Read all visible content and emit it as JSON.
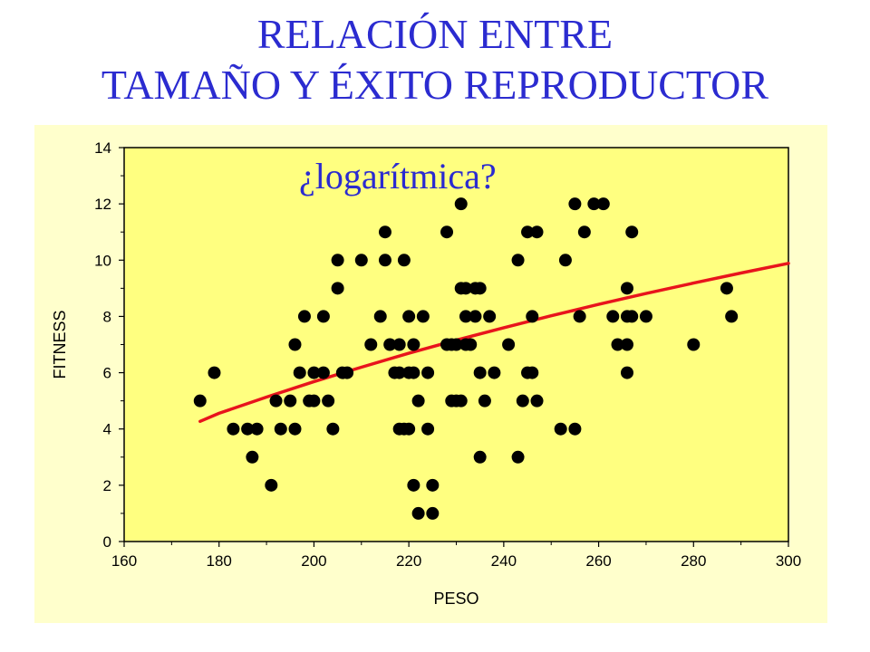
{
  "title": {
    "line1": "RELACIÓN ENTRE",
    "line2": "TAMAÑO Y ÉXITO REPRODUCTOR"
  },
  "colors": {
    "title": "#2b2bd0",
    "panel_background": "#ffffcc",
    "plot_background": "#ffff80",
    "points": "#000000",
    "trend_line": "#e8141c"
  },
  "chart_data": {
    "type": "scatter",
    "xlabel": "PESO",
    "ylabel": "FITNESS",
    "annotation": "¿logarítmica?",
    "xlim": [
      160,
      300
    ],
    "ylim": [
      0,
      14
    ],
    "x_ticks": [
      160,
      180,
      200,
      220,
      240,
      260,
      280,
      300
    ],
    "y_ticks": [
      0,
      2,
      4,
      6,
      8,
      10,
      12,
      14
    ],
    "grid": false,
    "series": [
      {
        "points": [
          [
            176,
            5
          ],
          [
            179,
            6
          ],
          [
            183,
            4
          ],
          [
            186,
            4
          ],
          [
            187,
            3
          ],
          [
            188,
            4
          ],
          [
            191,
            2
          ],
          [
            192,
            5
          ],
          [
            193,
            4
          ],
          [
            195,
            5
          ],
          [
            196,
            4
          ],
          [
            196,
            7
          ],
          [
            197,
            6
          ],
          [
            198,
            8
          ],
          [
            199,
            5
          ],
          [
            200,
            6
          ],
          [
            200,
            5
          ],
          [
            202,
            6
          ],
          [
            202,
            8
          ],
          [
            203,
            5
          ],
          [
            204,
            4
          ],
          [
            205,
            9
          ],
          [
            205,
            10
          ],
          [
            206,
            6
          ],
          [
            207,
            6
          ],
          [
            210,
            10
          ],
          [
            212,
            7
          ],
          [
            214,
            8
          ],
          [
            215,
            11
          ],
          [
            215,
            10
          ],
          [
            216,
            7
          ],
          [
            217,
            6
          ],
          [
            218,
            4
          ],
          [
            218,
            6
          ],
          [
            218,
            7
          ],
          [
            219,
            10
          ],
          [
            219,
            4
          ],
          [
            220,
            6
          ],
          [
            220,
            8
          ],
          [
            220,
            4
          ],
          [
            221,
            6
          ],
          [
            221,
            7
          ],
          [
            221,
            2
          ],
          [
            222,
            1
          ],
          [
            222,
            5
          ],
          [
            223,
            8
          ],
          [
            224,
            6
          ],
          [
            224,
            4
          ],
          [
            225,
            1
          ],
          [
            225,
            2
          ],
          [
            228,
            7
          ],
          [
            228,
            11
          ],
          [
            229,
            5
          ],
          [
            229,
            7
          ],
          [
            230,
            5
          ],
          [
            230,
            7
          ],
          [
            231,
            12
          ],
          [
            231,
            9
          ],
          [
            231,
            5
          ],
          [
            232,
            8
          ],
          [
            232,
            9
          ],
          [
            232,
            7
          ],
          [
            233,
            7
          ],
          [
            234,
            9
          ],
          [
            234,
            8
          ],
          [
            235,
            9
          ],
          [
            235,
            6
          ],
          [
            235,
            3
          ],
          [
            236,
            5
          ],
          [
            237,
            8
          ],
          [
            238,
            6
          ],
          [
            241,
            7
          ],
          [
            243,
            3
          ],
          [
            243,
            10
          ],
          [
            244,
            5
          ],
          [
            245,
            11
          ],
          [
            245,
            6
          ],
          [
            246,
            8
          ],
          [
            246,
            6
          ],
          [
            247,
            5
          ],
          [
            247,
            11
          ],
          [
            252,
            4
          ],
          [
            253,
            10
          ],
          [
            255,
            12
          ],
          [
            255,
            4
          ],
          [
            256,
            8
          ],
          [
            257,
            11
          ],
          [
            259,
            12
          ],
          [
            261,
            12
          ],
          [
            263,
            8
          ],
          [
            264,
            7
          ],
          [
            266,
            9
          ],
          [
            266,
            8
          ],
          [
            266,
            7
          ],
          [
            266,
            6
          ],
          [
            267,
            11
          ],
          [
            267,
            8
          ],
          [
            270,
            8
          ],
          [
            280,
            7
          ],
          [
            287,
            9
          ],
          [
            288,
            8
          ]
        ]
      }
    ],
    "trend_line": {
      "type": "logarithmic",
      "points": [
        [
          176,
          4.3
        ],
        [
          180,
          4.62
        ],
        [
          190,
          5.26
        ],
        [
          200,
          5.87
        ],
        [
          210,
          6.44
        ],
        [
          220,
          6.99
        ],
        [
          230,
          7.51
        ],
        [
          240,
          8.0
        ],
        [
          250,
          8.47
        ],
        [
          260,
          8.92
        ],
        [
          270,
          9.35
        ],
        [
          280,
          9.76
        ],
        [
          290,
          10.16
        ],
        [
          300,
          10.54
        ]
      ]
    }
  }
}
